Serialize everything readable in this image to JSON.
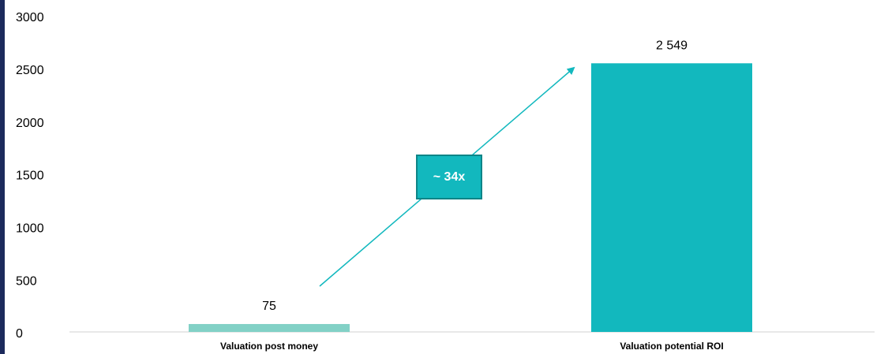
{
  "chart_data": {
    "type": "bar",
    "categories": [
      "Valuation post money",
      "Valuation potential ROI"
    ],
    "values": [
      75,
      2549
    ],
    "value_labels": [
      "75",
      "2 549"
    ],
    "colors": [
      "#82d1c6",
      "#12b8be"
    ],
    "annotation": "~ 34x",
    "ylim": [
      0,
      3000
    ],
    "yticks": [
      0,
      500,
      1000,
      1500,
      2000,
      2500,
      3000
    ],
    "grid": false
  }
}
